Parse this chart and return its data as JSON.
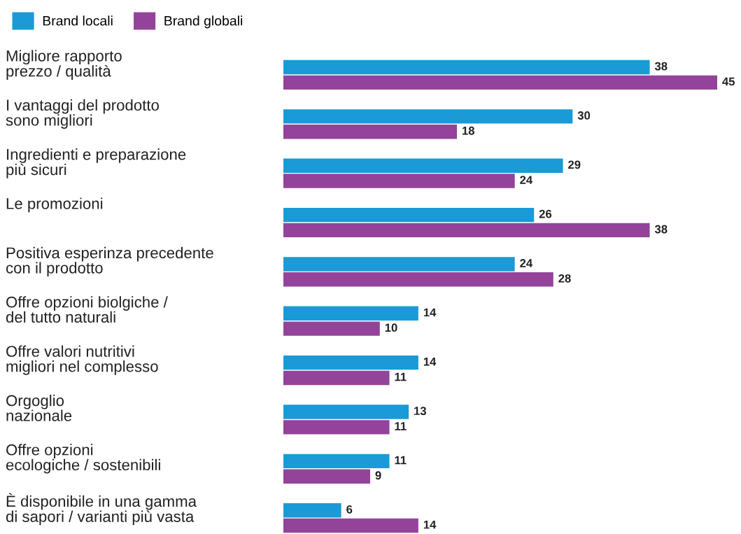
{
  "chart_data": {
    "type": "bar",
    "orientation": "horizontal",
    "legend": "top left",
    "data_labels": true,
    "categories": [
      "Migliore rapporto\nprezzo / qualità",
      "I vantaggi del prodotto\nsono migliori",
      "Ingredienti e preparazione\npiù sicuri",
      "Le promozioni",
      "Positiva esperinza precedente\ncon il prodotto",
      "Offre opzioni biolgiche /\ndel tutto naturali",
      "Offre valori nutritivi\nmigliori nel complesso",
      "Orgoglio\nnazionale",
      "Offre opzioni\necologiche / sostenibili",
      "È disponibile in una gamma\ndi sapori / varianti più vasta"
    ],
    "series": [
      {
        "name": "Brand locali",
        "color": "#1a9ad6",
        "values": [
          38,
          30,
          29,
          26,
          24,
          14,
          14,
          13,
          11,
          6
        ]
      },
      {
        "name": "Brand globali",
        "color": "#93449a",
        "values": [
          45,
          18,
          24,
          38,
          28,
          10,
          11,
          11,
          9,
          14
        ]
      }
    ]
  }
}
